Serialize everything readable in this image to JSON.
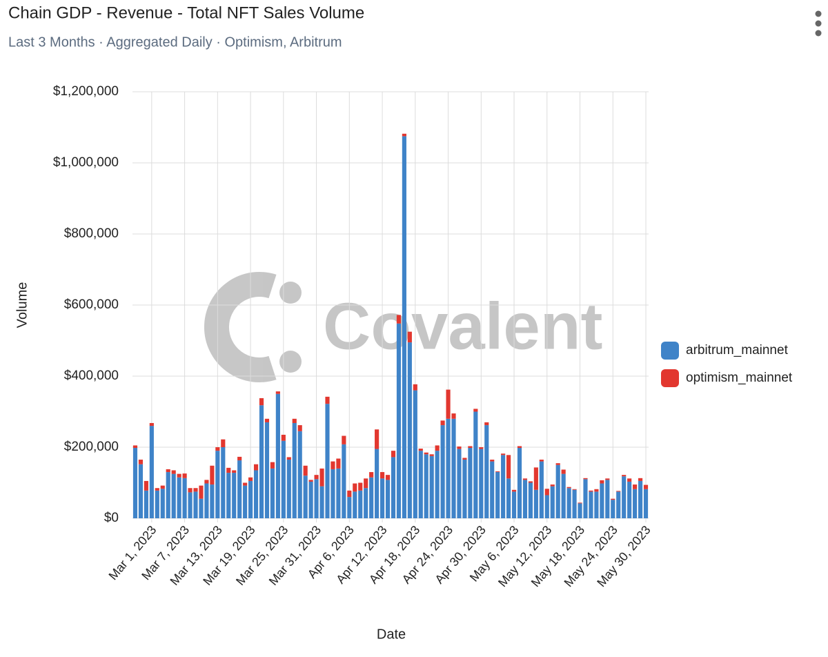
{
  "chart_data": {
    "type": "stacked_bar",
    "title": "Chain GDP - Revenue - Total NFT Sales Volume",
    "subtitle": "Last 3 Months · Aggregated Daily · Optimism, Arbitrum",
    "watermark": "Covalent",
    "x_label": "Date",
    "y_label": "Volume",
    "categories": [
      null,
      null,
      null,
      "Mar 1, 2023",
      null,
      null,
      null,
      null,
      null,
      "Mar 7, 2023",
      null,
      null,
      null,
      null,
      null,
      "Mar 13, 2023",
      null,
      null,
      null,
      null,
      null,
      "Mar 19, 2023",
      null,
      null,
      null,
      null,
      null,
      "Mar 25, 2023",
      null,
      null,
      null,
      null,
      null,
      "Mar 31, 2023",
      null,
      null,
      null,
      null,
      null,
      "Apr 6, 2023",
      null,
      null,
      null,
      null,
      null,
      "Apr 12, 2023",
      null,
      null,
      null,
      null,
      null,
      "Apr 18, 2023",
      null,
      null,
      null,
      null,
      null,
      "Apr 24, 2023",
      null,
      null,
      null,
      null,
      null,
      "Apr 30, 2023",
      null,
      null,
      null,
      null,
      null,
      "May 6, 2023",
      null,
      null,
      null,
      null,
      null,
      "May 12, 2023",
      null,
      null,
      null,
      null,
      null,
      "May 18, 2023",
      null,
      null,
      null,
      null,
      null,
      "May 24, 2023",
      null,
      null,
      null,
      null,
      null,
      "May 30, 2023"
    ],
    "series": [
      {
        "name": "arbitrum_mainnet",
        "color": "#3f83c8",
        "values": [
          198000,
          152000,
          78000,
          260000,
          78000,
          83000,
          130000,
          125000,
          115000,
          113000,
          73000,
          75000,
          55000,
          98000,
          95000,
          190000,
          200000,
          128000,
          128000,
          163000,
          92000,
          105000,
          135000,
          318000,
          270000,
          140000,
          350000,
          218000,
          165000,
          268000,
          245000,
          120000,
          103000,
          110000,
          90000,
          322000,
          138000,
          140000,
          208000,
          60000,
          75000,
          78000,
          85000,
          115000,
          195000,
          112000,
          108000,
          172000,
          548000,
          1075000,
          495000,
          360000,
          190000,
          180000,
          175000,
          190000,
          262000,
          280000,
          280000,
          195000,
          165000,
          198000,
          300000,
          195000,
          262000,
          160000,
          130000,
          178000,
          112000,
          75000,
          198000,
          108000,
          100000,
          80000,
          160000,
          65000,
          90000,
          150000,
          125000,
          85000,
          80000,
          42000,
          110000,
          75000,
          75000,
          98000,
          108000,
          52000,
          75000,
          118000,
          103000,
          82000,
          105000,
          82000
        ]
      },
      {
        "name": "optimism_mainnet",
        "color": "#e2372f",
        "values": [
          7000,
          13000,
          27000,
          8000,
          7000,
          9000,
          8000,
          10000,
          10000,
          13000,
          12000,
          10000,
          37000,
          10000,
          53000,
          10000,
          22000,
          14000,
          7000,
          10000,
          8000,
          10000,
          17000,
          20000,
          10000,
          18000,
          7000,
          17000,
          7000,
          12000,
          17000,
          28000,
          5000,
          12000,
          50000,
          20000,
          22000,
          28000,
          24000,
          18000,
          23000,
          22000,
          27000,
          15000,
          55000,
          18000,
          14000,
          18000,
          24000,
          7000,
          30000,
          17000,
          6000,
          5000,
          5000,
          15000,
          13000,
          82000,
          15000,
          7000,
          5000,
          5000,
          8000,
          5000,
          8000,
          5000,
          2000,
          4000,
          66000,
          5000,
          5000,
          4000,
          4000,
          63000,
          5000,
          18000,
          5000,
          5000,
          12000,
          3000,
          2000,
          2000,
          3000,
          3000,
          7000,
          9000,
          4000,
          3000,
          2000,
          4000,
          9000,
          13000,
          8000,
          12000
        ]
      }
    ],
    "ylim": [
      0,
      1200000
    ],
    "yticks": [
      {
        "value": 0,
        "label": "$0"
      },
      {
        "value": 200000,
        "label": "$200,000"
      },
      {
        "value": 400000,
        "label": "$400,000"
      },
      {
        "value": 600000,
        "label": "$600,000"
      },
      {
        "value": 800000,
        "label": "$800,000"
      },
      {
        "value": 1000000,
        "label": "$1,000,000"
      },
      {
        "value": 1200000,
        "label": "$1,200,000"
      }
    ],
    "grid": true,
    "legend_position": "right"
  }
}
